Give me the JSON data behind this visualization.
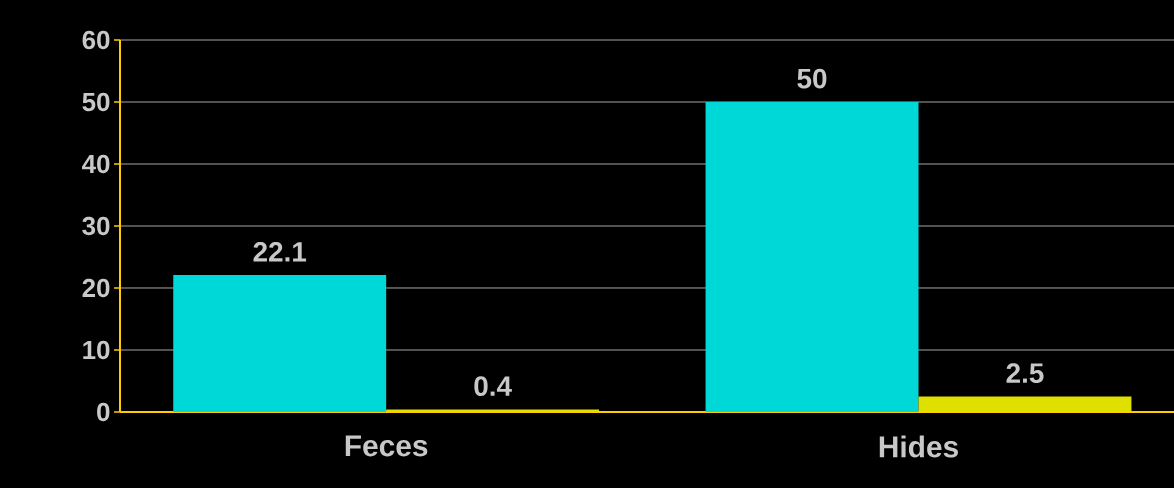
{
  "chart_data": {
    "type": "bar",
    "categories": [
      "Feces",
      "Hides"
    ],
    "series": [
      {
        "color": "#00d8d8",
        "values": [
          22.1,
          50
        ]
      },
      {
        "color": "#e0e000",
        "values": [
          0.4,
          2.5
        ]
      }
    ],
    "ylim": [
      0,
      60
    ],
    "yticks": [
      0,
      10,
      20,
      30,
      40,
      50,
      60
    ],
    "grid": "y",
    "data_labels": true
  }
}
